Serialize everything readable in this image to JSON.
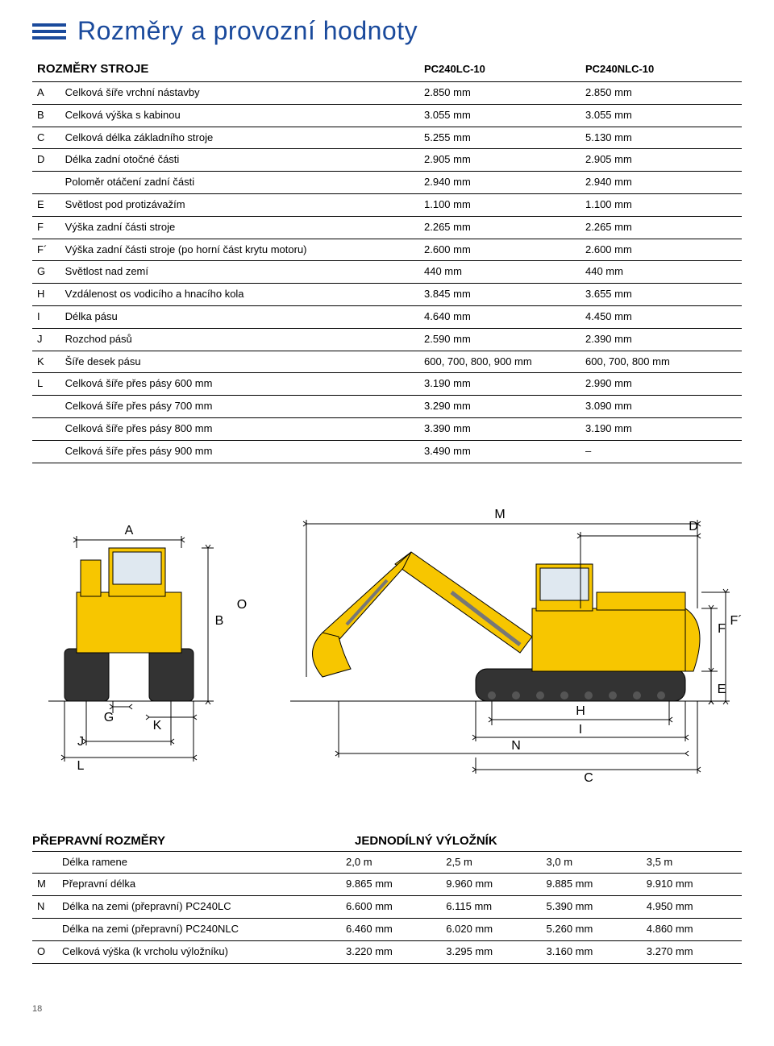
{
  "page": {
    "title": "Rozměry a provozní hodnoty",
    "header_icon_color": "#1a4a9c",
    "page_number": "18"
  },
  "table1": {
    "heading": "ROZMĚRY STROJE",
    "col1": "PC240LC-10",
    "col2": "PC240NLC-10",
    "rows": [
      {
        "key": "A",
        "label": "Celková šíře vrchní nástavby",
        "v1": "2.850 mm",
        "v2": "2.850 mm"
      },
      {
        "key": "B",
        "label": "Celková výška s kabinou",
        "v1": "3.055 mm",
        "v2": "3.055 mm"
      },
      {
        "key": "C",
        "label": "Celková délka základního stroje",
        "v1": "5.255 mm",
        "v2": "5.130 mm"
      },
      {
        "key": "D",
        "label": "Délka zadní otočné části",
        "v1": "2.905 mm",
        "v2": "2.905 mm"
      },
      {
        "key": "",
        "label": "Poloměr otáčení zadní části",
        "v1": "2.940 mm",
        "v2": "2.940 mm"
      },
      {
        "key": "E",
        "label": "Světlost pod protizávažím",
        "v1": "1.100 mm",
        "v2": "1.100 mm"
      },
      {
        "key": "F",
        "label": "Výška zadní části stroje",
        "v1": "2.265 mm",
        "v2": "2.265 mm"
      },
      {
        "key": "F´",
        "label": "Výška zadní části stroje (po horní část krytu motoru)",
        "v1": "2.600 mm",
        "v2": "2.600 mm"
      },
      {
        "key": "G",
        "label": "Světlost nad zemí",
        "v1": "440 mm",
        "v2": "440 mm"
      },
      {
        "key": "H",
        "label": "Vzdálenost os vodicího a hnacího kola",
        "v1": "3.845 mm",
        "v2": "3.655 mm"
      },
      {
        "key": "I",
        "label": "Délka pásu",
        "v1": "4.640 mm",
        "v2": "4.450 mm"
      },
      {
        "key": "J",
        "label": "Rozchod pásů",
        "v1": "2.590 mm",
        "v2": "2.390 mm"
      },
      {
        "key": "K",
        "label": "Šíře desek pásu",
        "v1": "600, 700, 800, 900 mm",
        "v2": "600, 700, 800 mm"
      },
      {
        "key": "L",
        "label": "Celková šíře přes pásy 600 mm",
        "v1": "3.190 mm",
        "v2": "2.990 mm"
      },
      {
        "key": "",
        "label": "Celková šíře přes pásy 700 mm",
        "v1": "3.290 mm",
        "v2": "3.090 mm"
      },
      {
        "key": "",
        "label": "Celková šíře přes pásy 800 mm",
        "v1": "3.390 mm",
        "v2": "3.190 mm"
      },
      {
        "key": "",
        "label": "Celková šíře přes pásy 900 mm",
        "v1": "3.490 mm",
        "v2": "–"
      }
    ]
  },
  "diagram": {
    "labels": [
      "A",
      "B",
      "O",
      "G",
      "K",
      "J",
      "L",
      "M",
      "D",
      "F",
      "F´",
      "E",
      "H",
      "I",
      "N",
      "C"
    ],
    "machine_fill": "#f7c600",
    "machine_stroke": "#000000",
    "dim_line_color": "#000000",
    "label_font_size": 16
  },
  "table2": {
    "heading_left": "PŘEPRAVNÍ ROZMĚRY",
    "heading_right": "JEDNODÍLNÝ VÝLOŽNÍK",
    "arm_row_label": "Délka ramene",
    "cols": [
      "2,0 m",
      "2,5 m",
      "3,0 m",
      "3,5 m"
    ],
    "rows": [
      {
        "key": "M",
        "label": "Přepravní délka",
        "v": [
          "9.865 mm",
          "9.960 mm",
          "9.885 mm",
          "9.910 mm"
        ]
      },
      {
        "key": "N",
        "label": "Délka na zemi (přepravní) PC240LC",
        "v": [
          "6.600 mm",
          "6.115 mm",
          "5.390 mm",
          "4.950 mm"
        ]
      },
      {
        "key": "",
        "label": "Délka na zemi (přepravní) PC240NLC",
        "v": [
          "6.460 mm",
          "6.020 mm",
          "5.260 mm",
          "4.860 mm"
        ]
      },
      {
        "key": "O",
        "label": "Celková výška (k vrcholu výložníku)",
        "v": [
          "3.220 mm",
          "3.295 mm",
          "3.160 mm",
          "3.270 mm"
        ]
      }
    ]
  }
}
